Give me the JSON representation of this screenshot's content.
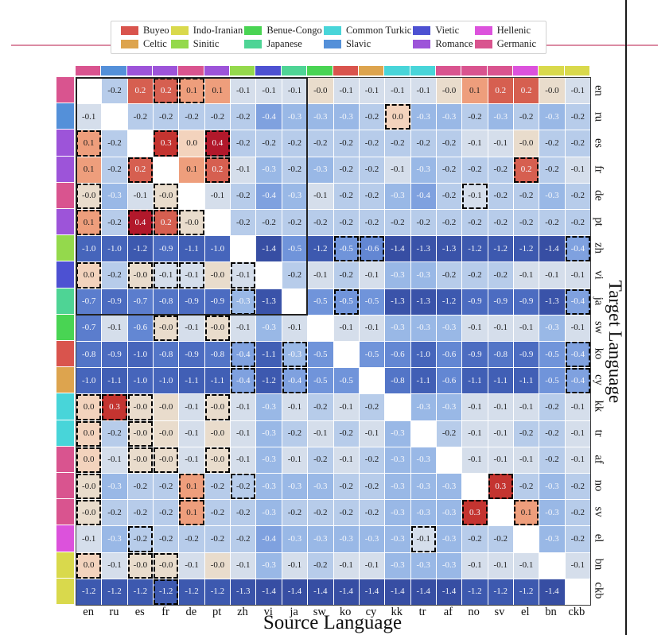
{
  "legend": {
    "columns": [
      [
        {
          "label": "Buyeo",
          "color": "#d9544d"
        },
        {
          "label": "Celtic",
          "color": "#dda44e"
        }
      ],
      [
        {
          "label": "Indo-Iranian",
          "color": "#d9d94c"
        },
        {
          "label": "Sinitic",
          "color": "#94d94c"
        }
      ],
      [
        {
          "label": "Benue-Congo",
          "color": "#49d453"
        },
        {
          "label": "Japanese",
          "color": "#4ed495"
        }
      ],
      [
        {
          "label": "Common Turkic",
          "color": "#48d5d9"
        },
        {
          "label": "Slavic",
          "color": "#5490d9"
        }
      ],
      [
        {
          "label": "Vietic",
          "color": "#4d51d2"
        },
        {
          "label": "Romance",
          "color": "#9d54d9"
        }
      ],
      [
        {
          "label": "Hellenic",
          "color": "#dc52dc"
        },
        {
          "label": "Germanic",
          "color": "#d9548f"
        }
      ]
    ]
  },
  "families": {
    "Germanic": "#d9548f",
    "Slavic": "#5490d9",
    "Romance": "#9d54d9",
    "Sinitic": "#94d94c",
    "Vietic": "#4d51d2",
    "Japanese": "#4ed495",
    "Benue-Congo": "#49d453",
    "Buyeo": "#d9544d",
    "Celtic": "#dda44e",
    "Common Turkic": "#48d5d9",
    "Hellenic": "#dc52dc",
    "Indo-Iranian": "#d9d94c"
  },
  "languages": [
    {
      "code": "en",
      "family": "Germanic"
    },
    {
      "code": "ru",
      "family": "Slavic"
    },
    {
      "code": "es",
      "family": "Romance"
    },
    {
      "code": "fr",
      "family": "Romance"
    },
    {
      "code": "de",
      "family": "Germanic"
    },
    {
      "code": "pt",
      "family": "Romance"
    },
    {
      "code": "zh",
      "family": "Sinitic"
    },
    {
      "code": "vi",
      "family": "Vietic"
    },
    {
      "code": "ja",
      "family": "Japanese"
    },
    {
      "code": "sw",
      "family": "Benue-Congo"
    },
    {
      "code": "ko",
      "family": "Buyeo"
    },
    {
      "code": "cy",
      "family": "Celtic"
    },
    {
      "code": "kk",
      "family": "Common Turkic"
    },
    {
      "code": "tr",
      "family": "Common Turkic"
    },
    {
      "code": "af",
      "family": "Germanic"
    },
    {
      "code": "no",
      "family": "Germanic"
    },
    {
      "code": "sv",
      "family": "Germanic"
    },
    {
      "code": "el",
      "family": "Hellenic"
    },
    {
      "code": "bn",
      "family": "Indo-Iranian"
    },
    {
      "code": "ckb",
      "family": "Indo-Iranian"
    }
  ],
  "chart_data": {
    "type": "heatmap",
    "xlabel": "Source Language",
    "ylabel": "Target Language",
    "x_labels": [
      "en",
      "ru",
      "es",
      "fr",
      "de",
      "pt",
      "zh",
      "vi",
      "ja",
      "sw",
      "ko",
      "cy",
      "kk",
      "tr",
      "af",
      "no",
      "sv",
      "el",
      "bn",
      "ckb"
    ],
    "y_labels": [
      "en",
      "ru",
      "es",
      "fr",
      "de",
      "pt",
      "zh",
      "vi",
      "ja",
      "sw",
      "ko",
      "cy",
      "kk",
      "tr",
      "af",
      "no",
      "sv",
      "el",
      "bn",
      "ckb"
    ],
    "values": [
      [
        null,
        "-0.2",
        "0.2",
        "0.2",
        "0.1",
        "0.1",
        "-0.1",
        "-0.1",
        "-0.1",
        "-0.0",
        "-0.1",
        "-0.1",
        "-0.1",
        "-0.1",
        "-0.0",
        "0.1",
        "0.2",
        "0.2",
        "-0.0",
        "-0.1"
      ],
      [
        "-0.1",
        null,
        "-0.2",
        "-0.2",
        "-0.2",
        "-0.2",
        "-0.2",
        "-0.4",
        "-0.3",
        "-0.3",
        "-0.3",
        "-0.2",
        "0.0",
        "-0.3",
        "-0.3",
        "-0.2",
        "-0.3",
        "-0.2",
        "-0.3",
        "-0.2"
      ],
      [
        "0.1",
        "-0.2",
        null,
        "0.3",
        "0.0",
        "0.4",
        "-0.2",
        "-0.2",
        "-0.2",
        "-0.2",
        "-0.2",
        "-0.2",
        "-0.2",
        "-0.2",
        "-0.2",
        "-0.1",
        "-0.1",
        "-0.0",
        "-0.2",
        "-0.2"
      ],
      [
        "0.1",
        "-0.2",
        "0.2",
        null,
        "0.1",
        "0.2",
        "-0.1",
        "-0.3",
        "-0.2",
        "-0.3",
        "-0.2",
        "-0.2",
        "-0.1",
        "-0.3",
        "-0.2",
        "-0.2",
        "-0.2",
        "0.2",
        "-0.2",
        "-0.1"
      ],
      [
        "-0.0",
        "-0.3",
        "-0.1",
        "-0.0",
        null,
        "-0.1",
        "-0.2",
        "-0.4",
        "-0.3",
        "-0.1",
        "-0.2",
        "-0.2",
        "-0.3",
        "-0.4",
        "-0.2",
        "-0.1",
        "-0.2",
        "-0.2",
        "-0.3",
        "-0.2"
      ],
      [
        "0.1",
        "-0.2",
        "0.4",
        "0.2",
        "-0.0",
        null,
        "-0.2",
        "-0.2",
        "-0.2",
        "-0.2",
        "-0.2",
        "-0.2",
        "-0.2",
        "-0.2",
        "-0.2",
        "-0.2",
        "-0.2",
        "-0.2",
        "-0.2",
        "-0.2"
      ],
      [
        "-1.0",
        "-1.0",
        "-1.2",
        "-0.9",
        "-1.1",
        "-1.0",
        null,
        "-1.4",
        "-0.5",
        "-1.2",
        "-0.5",
        "-0.6",
        "-1.4",
        "-1.3",
        "-1.3",
        "-1.2",
        "-1.2",
        "-1.2",
        "-1.4",
        "-0.4"
      ],
      [
        "0.0",
        "-0.2",
        "-0.0",
        "-0.1",
        "-0.1",
        "-0.0",
        "-0.1",
        null,
        "-0.2",
        "-0.1",
        "-0.2",
        "-0.1",
        "-0.3",
        "-0.3",
        "-0.2",
        "-0.2",
        "-0.2",
        "-0.1",
        "-0.1",
        "-0.1"
      ],
      [
        "-0.7",
        "-0.9",
        "-0.7",
        "-0.8",
        "-0.9",
        "-0.9",
        "-0.3",
        "-1.3",
        null,
        "-0.5",
        "-0.5",
        "-0.5",
        "-1.3",
        "-1.3",
        "-1.2",
        "-0.9",
        "-0.9",
        "-0.9",
        "-1.3",
        "-0.4"
      ],
      [
        "-0.7",
        "-0.1",
        "-0.6",
        "-0.0",
        "-0.1",
        "-0.0",
        "-0.1",
        "-0.3",
        "-0.1",
        null,
        "-0.1",
        "-0.1",
        "-0.3",
        "-0.3",
        "-0.3",
        "-0.1",
        "-0.1",
        "-0.1",
        "-0.3",
        "-0.1"
      ],
      [
        "-0.8",
        "-0.9",
        "-1.0",
        "-0.8",
        "-0.9",
        "-0.8",
        "-0.4",
        "-1.1",
        "-0.3",
        "-0.5",
        null,
        "-0.5",
        "-0.6",
        "-1.0",
        "-0.6",
        "-0.9",
        "-0.8",
        "-0.9",
        "-0.5",
        "-0.4"
      ],
      [
        "-1.0",
        "-1.1",
        "-1.0",
        "-1.0",
        "-1.1",
        "-1.1",
        "-0.4",
        "-1.2",
        "-0.4",
        "-0.5",
        "-0.5",
        null,
        "-0.8",
        "-1.1",
        "-0.6",
        "-1.1",
        "-1.1",
        "-1.1",
        "-0.5",
        "-0.4"
      ],
      [
        "0.0",
        "0.3",
        "-0.0",
        "-0.0",
        "-0.1",
        "-0.0",
        "-0.1",
        "-0.3",
        "-0.1",
        "-0.2",
        "-0.1",
        "-0.2",
        null,
        "-0.3",
        "-0.3",
        "-0.1",
        "-0.1",
        "-0.1",
        "-0.2",
        "-0.1"
      ],
      [
        "0.0",
        "-0.2",
        "-0.0",
        "-0.0",
        "-0.1",
        "-0.0",
        "-0.1",
        "-0.3",
        "-0.2",
        "-0.1",
        "-0.2",
        "-0.1",
        "-0.3",
        null,
        "-0.2",
        "-0.1",
        "-0.1",
        "-0.2",
        "-0.2",
        "-0.1"
      ],
      [
        "0.0",
        "-0.1",
        "-0.0",
        "-0.0",
        "-0.1",
        "-0.0",
        "-0.1",
        "-0.3",
        "-0.1",
        "-0.2",
        "-0.1",
        "-0.2",
        "-0.3",
        "-0.3",
        null,
        "-0.1",
        "-0.1",
        "-0.1",
        "-0.2",
        "-0.1"
      ],
      [
        "-0.0",
        "-0.3",
        "-0.2",
        "-0.2",
        "0.1",
        "-0.2",
        "-0.2",
        "-0.3",
        "-0.3",
        "-0.3",
        "-0.2",
        "-0.2",
        "-0.3",
        "-0.3",
        "-0.3",
        null,
        "0.3",
        "-0.2",
        "-0.3",
        "-0.2"
      ],
      [
        "-0.0",
        "-0.2",
        "-0.2",
        "-0.2",
        "0.1",
        "-0.2",
        "-0.2",
        "-0.3",
        "-0.2",
        "-0.2",
        "-0.2",
        "-0.2",
        "-0.3",
        "-0.3",
        "-0.3",
        "0.3",
        null,
        "0.1",
        "-0.3",
        "-0.2"
      ],
      [
        "-0.1",
        "-0.3",
        "-0.2",
        "-0.2",
        "-0.2",
        "-0.2",
        "-0.2",
        "-0.4",
        "-0.3",
        "-0.3",
        "-0.3",
        "-0.3",
        "-0.3",
        "-0.1",
        "-0.3",
        "-0.2",
        "-0.2",
        null,
        "-0.3",
        "-0.2"
      ],
      [
        "0.0",
        "-0.1",
        "-0.0",
        "-0.0",
        "-0.1",
        "-0.0",
        "-0.1",
        "-0.3",
        "-0.1",
        "-0.2",
        "-0.1",
        "-0.1",
        "-0.3",
        "-0.3",
        "-0.3",
        "-0.1",
        "-0.1",
        "-0.1",
        null,
        "-0.1"
      ],
      [
        "-1.2",
        "-1.2",
        "-1.2",
        "-1.2",
        "-1.2",
        "-1.2",
        "-1.3",
        "-1.4",
        "-1.4",
        "-1.4",
        "-1.4",
        "-1.4",
        "-1.4",
        "-1.4",
        "-1.4",
        "-1.2",
        "-1.2",
        "-1.2",
        "-1.4",
        null
      ]
    ],
    "dashed_cells": [
      [
        "en",
        "fr"
      ],
      [
        "en",
        "de"
      ],
      [
        "ru",
        "kk"
      ],
      [
        "es",
        "en"
      ],
      [
        "es",
        "fr"
      ],
      [
        "es",
        "pt"
      ],
      [
        "fr",
        "es"
      ],
      [
        "fr",
        "pt"
      ],
      [
        "fr",
        "el"
      ],
      [
        "de",
        "en"
      ],
      [
        "de",
        "fr"
      ],
      [
        "de",
        "no"
      ],
      [
        "pt",
        "en"
      ],
      [
        "pt",
        "es"
      ],
      [
        "pt",
        "fr"
      ],
      [
        "pt",
        "de"
      ],
      [
        "zh",
        "ko"
      ],
      [
        "zh",
        "cy"
      ],
      [
        "zh",
        "ckb"
      ],
      [
        "vi",
        "en"
      ],
      [
        "vi",
        "es"
      ],
      [
        "vi",
        "fr"
      ],
      [
        "vi",
        "de"
      ],
      [
        "vi",
        "zh"
      ],
      [
        "ja",
        "zh"
      ],
      [
        "ja",
        "ko"
      ],
      [
        "ja",
        "ckb"
      ],
      [
        "sw",
        "fr"
      ],
      [
        "sw",
        "pt"
      ],
      [
        "ko",
        "zh"
      ],
      [
        "ko",
        "ja"
      ],
      [
        "ko",
        "ckb"
      ],
      [
        "cy",
        "zh"
      ],
      [
        "cy",
        "ja"
      ],
      [
        "cy",
        "ckb"
      ],
      [
        "kk",
        "en"
      ],
      [
        "kk",
        "ru"
      ],
      [
        "kk",
        "es"
      ],
      [
        "kk",
        "pt"
      ],
      [
        "tr",
        "en"
      ],
      [
        "tr",
        "es"
      ],
      [
        "af",
        "en"
      ],
      [
        "af",
        "es"
      ],
      [
        "af",
        "fr"
      ],
      [
        "af",
        "pt"
      ],
      [
        "no",
        "en"
      ],
      [
        "no",
        "de"
      ],
      [
        "no",
        "zh"
      ],
      [
        "no",
        "sv"
      ],
      [
        "sv",
        "en"
      ],
      [
        "sv",
        "de"
      ],
      [
        "sv",
        "no"
      ],
      [
        "sv",
        "el"
      ],
      [
        "el",
        "es"
      ],
      [
        "el",
        "tr"
      ],
      [
        "bn",
        "en"
      ],
      [
        "bn",
        "es"
      ],
      [
        "bn",
        "fr"
      ],
      [
        "ckb",
        "fr"
      ]
    ],
    "solid_block": {
      "target_rows": [
        "en",
        "ja"
      ],
      "source_cols": [
        "en",
        "ja"
      ]
    },
    "color_scale": {
      "min": -1.4,
      "max": 0.4,
      "diverging_center": 0
    },
    "color_map": {
      "0.4": "#b2182b",
      "0.3": "#c43430",
      "0.2": "#d65f50",
      "0.1": "#ee9e7c",
      "0.0": "#f3d3bd",
      "-0.0": "#e9dccc",
      "-0.1": "#d5deeb",
      "-0.2": "#b7ccea",
      "-0.3": "#99b8e6",
      "-0.4": "#7fa1df",
      "-0.5": "#7094da",
      "-0.6": "#6387d3",
      "-0.7": "#5b7dcd",
      "-0.8": "#5375c7",
      "-0.9": "#4c6cc1",
      "-1.0": "#4665bb",
      "-1.1": "#415fb5",
      "-1.2": "#3d59af",
      "-1.3": "#3a53a9",
      "-1.4": "#374ea3"
    }
  }
}
